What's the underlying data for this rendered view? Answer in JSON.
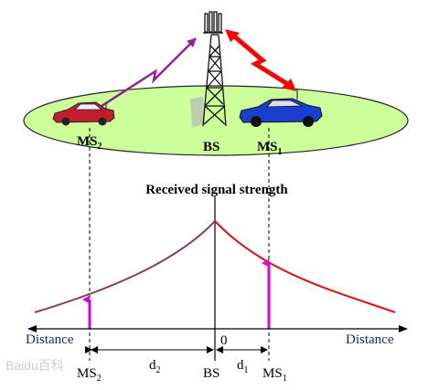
{
  "diagram": {
    "title": "Received signal strength",
    "labels": {
      "ms2_top": "MS",
      "ms2_top_sub": "2",
      "bs_top": "BS",
      "ms1_top": "MS",
      "ms1_top_sub": "1",
      "distance_left": "Distance",
      "distance_right": "Distance",
      "zero": "0",
      "ms2_bottom": "MS",
      "ms2_bottom_sub": "2",
      "bs_bottom": "BS",
      "ms1_bottom": "MS",
      "ms1_bottom_sub": "1",
      "d2": "d",
      "d2_sub": "2",
      "d1": "d",
      "d1_sub": "1"
    },
    "watermark": "Baidu百科",
    "colors": {
      "ellipse_fill": "#ccff99",
      "curve_left": "#8b3a62",
      "curve_right": "#e01010",
      "ms_marker": "#e000e0",
      "link_to_ms1": "#ff0000",
      "link_to_ms2": "#9020a0",
      "distance_text": "#1a237e"
    }
  }
}
